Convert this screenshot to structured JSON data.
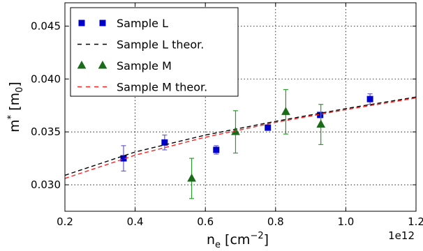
{
  "chart_data": {
    "type": "scatter",
    "title": "",
    "xlabel": "n_e [cm^-2]",
    "ylabel": "m* [m_0]",
    "x_offset_label": "1e12",
    "x_tick_labels": [
      "0.2",
      "0.4",
      "0.6",
      "0.8",
      "1.0",
      "1.2"
    ],
    "y_tick_labels": [
      "0.030",
      "0.035",
      "0.040",
      "0.045"
    ],
    "xlim": [
      0.2,
      1.2
    ],
    "ylim": [
      0.0275,
      0.0472
    ],
    "x_ticks": [
      0.2,
      0.4,
      0.6,
      0.8,
      1.0,
      1.2
    ],
    "y_ticks": [
      0.03,
      0.035,
      0.04,
      0.045
    ],
    "grid": true,
    "legend_placement": "top-left",
    "series": [
      {
        "name": "Sample L",
        "kind": "points",
        "marker": "square",
        "color": "#0000cc",
        "errbar_color": "#6a5acd",
        "x": [
          0.367,
          0.484,
          0.631,
          0.778,
          0.927,
          1.069
        ],
        "y": [
          0.0325,
          0.034,
          0.0333,
          0.0354,
          0.0366,
          0.0381
        ],
        "yerr": [
          0.0012,
          0.0007,
          0.0004,
          0.0002,
          0.0002,
          0.0005
        ]
      },
      {
        "name": "Sample L theor.",
        "kind": "line",
        "dash": true,
        "color": "#000000",
        "x": [
          0.2,
          0.4,
          0.6,
          0.8,
          1.0,
          1.2
        ],
        "y": [
          0.0309,
          0.0331,
          0.0347,
          0.036,
          0.0372,
          0.0383
        ]
      },
      {
        "name": "Sample M",
        "kind": "points",
        "marker": "triangle",
        "color": "#1a6b1a",
        "errbar_color": "#2e9a2e",
        "x": [
          0.561,
          0.686,
          0.829,
          0.929
        ],
        "y": [
          0.0306,
          0.035,
          0.0369,
          0.0357
        ],
        "yerr": [
          0.0019,
          0.002,
          0.0021,
          0.0019
        ]
      },
      {
        "name": "Sample M theor.",
        "kind": "line",
        "dash": true,
        "color": "#ff2020",
        "x": [
          0.2,
          0.4,
          0.6,
          0.8,
          1.0,
          1.2
        ],
        "y": [
          0.0306,
          0.0328,
          0.0345,
          0.0359,
          0.0371,
          0.0382
        ]
      }
    ]
  }
}
